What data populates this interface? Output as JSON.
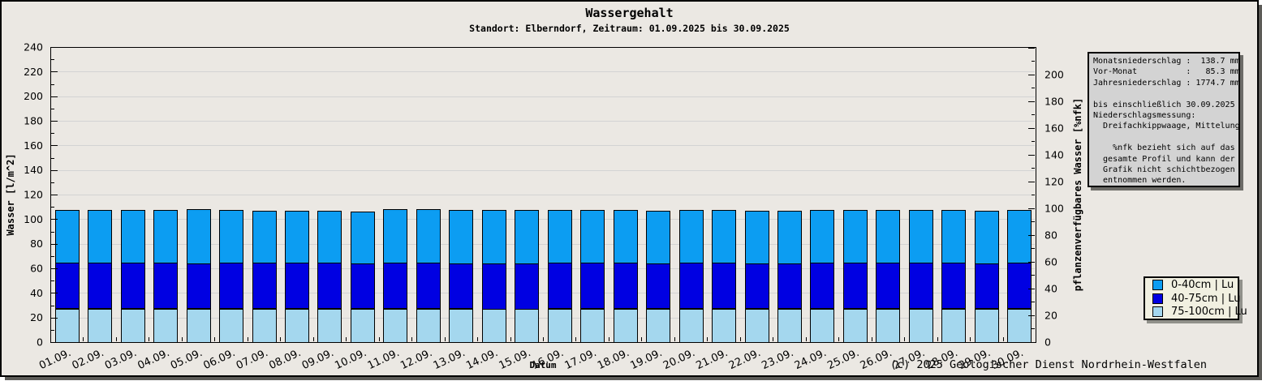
{
  "title": "Wassergehalt",
  "subtitle": "Standort: Elberndorf, Zeitraum: 01.09.2025 bis 30.09.2025",
  "footer": "(c) 2025 Geologischer Dienst Nordrhein-Westfalen",
  "info_box": {
    "lines": [
      "Monatsniederschlag :  138.7 mm",
      "Vor-Monat          :   85.3 mm",
      "Jahresniederschlag : 1774.7 mm",
      "",
      "bis einschließlich 30.09.2025",
      "Niederschlagsmessung:",
      "  Dreifachkippwaage, Mittelung",
      "",
      "    %nfk bezieht sich auf das",
      "  gesamte Profil und kann der",
      "  Grafik nicht schichtbezogen",
      "  entnommen werden."
    ]
  },
  "legend": {
    "items": [
      {
        "label": "0-40cm | Lu",
        "color": "#0c9df2"
      },
      {
        "label": "40-75cm | Lu",
        "color": "#0000e2"
      },
      {
        "label": "75-100cm | Lu",
        "color": "#a4d7ee"
      }
    ]
  },
  "chart_data": {
    "type": "bar",
    "stacked": true,
    "title": "Wassergehalt",
    "xlabel": "Datum",
    "ylabel_left": "Wasser [l/m^2]",
    "ylabel_right": "pflanzenverfügbares Wasser [%nfk]",
    "ylim_left": [
      0,
      240
    ],
    "ylim_right": [
      0,
      220.6
    ],
    "ytick_major_step": 20,
    "ytick_minor_step": 10,
    "ytick_label_max_right": 200,
    "grid": true,
    "grid_color": "#d3d3d3",
    "bar_outline_color": "#000000",
    "categories": [
      "01.09.",
      "02.09.",
      "03.09.",
      "04.09.",
      "05.09.",
      "06.09.",
      "07.09.",
      "08.09.",
      "09.09.",
      "10.09.",
      "11.09.",
      "12.09.",
      "13.09.",
      "14.09.",
      "15.09.",
      "16.09.",
      "17.09.",
      "18.09.",
      "19.09.",
      "20.09.",
      "21.09.",
      "22.09.",
      "23.09.",
      "24.09.",
      "25.09.",
      "26.09.",
      "27.09.",
      "28.09.",
      "29.09.",
      "30.09."
    ],
    "series": [
      {
        "name": "75-100cm | Lu",
        "color": "#a4d7ee",
        "values": [
          27.2,
          27.2,
          27.2,
          27.2,
          27.2,
          27.2,
          27.2,
          27.2,
          27.2,
          27.2,
          27.2,
          27.2,
          27.2,
          27.2,
          27.2,
          27.2,
          27.2,
          27.2,
          27.2,
          27.2,
          27.2,
          27.2,
          27.2,
          27.2,
          27.2,
          27.2,
          27.2,
          27.2,
          27.2,
          27.2
        ]
      },
      {
        "name": "40-75cm | Lu",
        "color": "#0000e2",
        "values": [
          37.2,
          37.2,
          37.2,
          37.2,
          37.2,
          37.2,
          37.2,
          37.2,
          37.2,
          37.2,
          37.2,
          37.2,
          37.2,
          36.8,
          36.8,
          37.2,
          37.2,
          37.2,
          37.2,
          37.2,
          37.2,
          37.2,
          37.2,
          37.2,
          37.2,
          37.2,
          37.2,
          37.2,
          37.2,
          37.2
        ]
      },
      {
        "name": "0-40cm | Lu",
        "color": "#0c9df2",
        "values": [
          43.1,
          43.1,
          42.9,
          43.1,
          43.9,
          43.1,
          42.3,
          42.1,
          42.1,
          41.9,
          43.6,
          43.8,
          43.2,
          43.5,
          43.6,
          42.8,
          42.9,
          42.8,
          42.7,
          42.8,
          42.9,
          42.7,
          42.6,
          42.9,
          43.0,
          43.1,
          42.9,
          42.8,
          42.6,
          42.8
        ]
      }
    ]
  }
}
